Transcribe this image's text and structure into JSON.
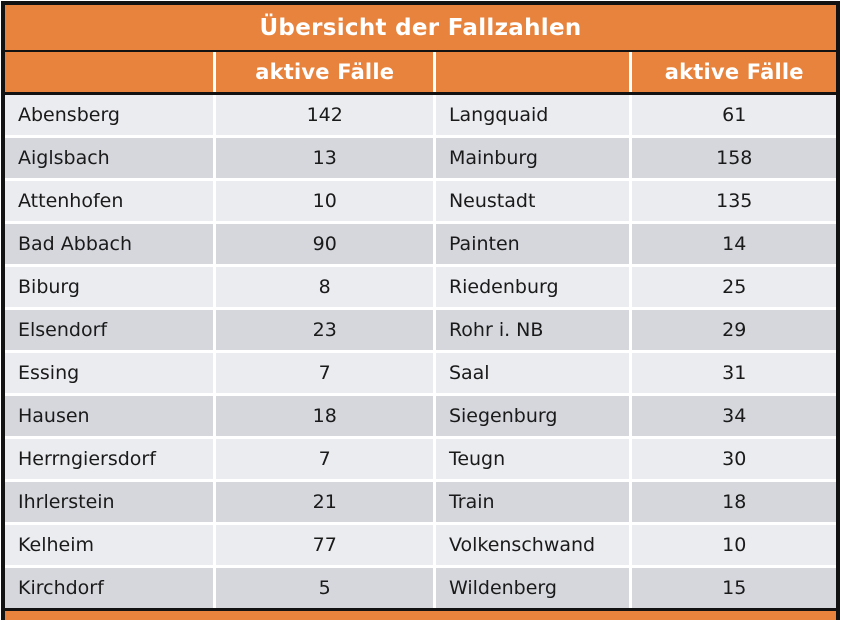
{
  "title": "Übersicht der Fallzahlen",
  "headers": {
    "left_value_col": "aktive Fälle",
    "right_value_col": "aktive Fälle"
  },
  "rows": [
    {
      "left": {
        "name": "Abensberg",
        "value": "142"
      },
      "right": {
        "name": "Langquaid",
        "value": "61"
      }
    },
    {
      "left": {
        "name": "Aiglsbach",
        "value": "13"
      },
      "right": {
        "name": "Mainburg",
        "value": "158"
      }
    },
    {
      "left": {
        "name": "Attenhofen",
        "value": "10"
      },
      "right": {
        "name": "Neustadt",
        "value": "135"
      }
    },
    {
      "left": {
        "name": "Bad Abbach",
        "value": "90"
      },
      "right": {
        "name": "Painten",
        "value": "14"
      }
    },
    {
      "left": {
        "name": "Biburg",
        "value": "8"
      },
      "right": {
        "name": "Riedenburg",
        "value": "25"
      }
    },
    {
      "left": {
        "name": "Elsendorf",
        "value": "23"
      },
      "right": {
        "name": "Rohr i. NB",
        "value": "29"
      }
    },
    {
      "left": {
        "name": "Essing",
        "value": "7"
      },
      "right": {
        "name": "Saal",
        "value": "31"
      }
    },
    {
      "left": {
        "name": "Hausen",
        "value": "18"
      },
      "right": {
        "name": "Siegenburg",
        "value": "34"
      }
    },
    {
      "left": {
        "name": "Herrngiersdorf",
        "value": "7"
      },
      "right": {
        "name": "Teugn",
        "value": "30"
      }
    },
    {
      "left": {
        "name": "Ihrlerstein",
        "value": "21"
      },
      "right": {
        "name": "Train",
        "value": "18"
      }
    },
    {
      "left": {
        "name": "Kelheim",
        "value": "77"
      },
      "right": {
        "name": "Volkenschwand",
        "value": "10"
      }
    },
    {
      "left": {
        "name": "Kirchdorf",
        "value": "5"
      },
      "right": {
        "name": "Wildenberg",
        "value": "15"
      }
    }
  ],
  "colors": {
    "accent_orange": "#E7833C",
    "row_light": "#EBECF0",
    "row_dark": "#D5D7DD",
    "border_black": "#121212",
    "separator_white": "#FFFFFF",
    "text": "#1A1A1A",
    "header_text": "#FFFFFF"
  }
}
